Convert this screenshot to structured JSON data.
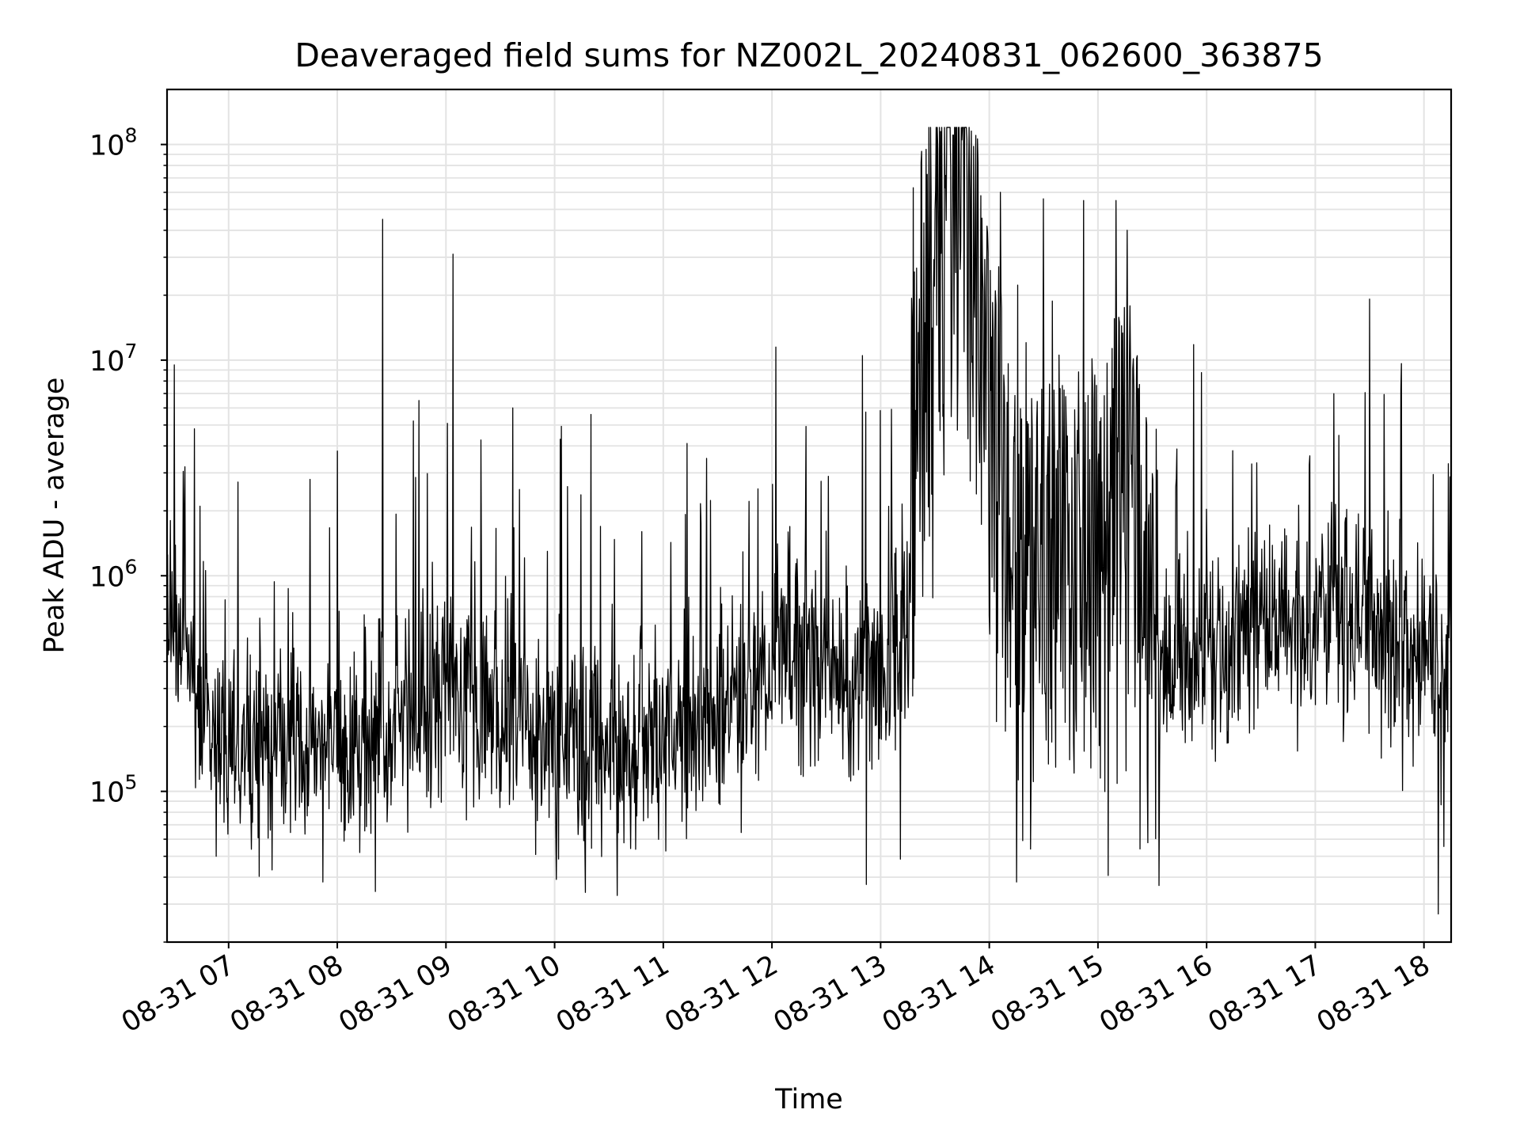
{
  "chart_data": {
    "type": "line",
    "title": "Deaveraged field sums for NZ002L_20240831_062600_363875",
    "xlabel": "Time",
    "ylabel": "Peak ADU - average",
    "yscale": "log",
    "ylim": [
      20000,
      180000000
    ],
    "xlim": [
      "2024-08-31 06:26",
      "2024-08-31 18:15"
    ],
    "grid": "on (major and minor)",
    "line_color": "#000000",
    "x_ticks": [
      "2024-08-31 07:00",
      "2024-08-31 08:00",
      "2024-08-31 09:00",
      "2024-08-31 10:00",
      "2024-08-31 11:00",
      "2024-08-31 12:00",
      "2024-08-31 13:00",
      "2024-08-31 14:00",
      "2024-08-31 15:00",
      "2024-08-31 16:00",
      "2024-08-31 17:00",
      "2024-08-31 18:00"
    ],
    "x_tick_labels": [
      "08-31 07",
      "08-31 08",
      "08-31 09",
      "08-31 10",
      "08-31 11",
      "08-31 12",
      "08-31 13",
      "08-31 14",
      "08-31 15",
      "08-31 16",
      "08-31 17",
      "08-31 18"
    ],
    "y_ticks": [
      {
        "value": 100000,
        "base": "10",
        "exp": "5"
      },
      {
        "value": 1000000,
        "base": "10",
        "exp": "6"
      },
      {
        "value": 10000000,
        "base": "10",
        "exp": "7"
      },
      {
        "value": 100000000,
        "base": "10",
        "exp": "8"
      }
    ],
    "envelope": {
      "x": [
        "2024-08-31 06:26",
        "2024-08-31 06:35",
        "2024-08-31 06:45",
        "2024-08-31 06:55",
        "2024-08-31 07:30",
        "2024-08-31 08:00",
        "2024-08-31 08:30",
        "2024-08-31 09:00",
        "2024-08-31 09:30",
        "2024-08-31 10:00",
        "2024-08-31 10:30",
        "2024-08-31 11:00",
        "2024-08-31 11:30",
        "2024-08-31 11:55",
        "2024-08-31 12:05",
        "2024-08-31 12:30",
        "2024-08-31 13:00",
        "2024-08-31 13:15",
        "2024-08-31 13:20",
        "2024-08-31 13:30",
        "2024-08-31 13:45",
        "2024-08-31 14:00",
        "2024-08-31 14:15",
        "2024-08-31 14:30",
        "2024-08-31 14:45",
        "2024-08-31 15:00",
        "2024-08-31 15:15",
        "2024-08-31 15:30",
        "2024-08-31 15:45",
        "2024-08-31 16:00",
        "2024-08-31 16:30",
        "2024-08-31 17:00",
        "2024-08-31 17:30",
        "2024-08-31 18:00",
        "2024-08-31 18:15"
      ],
      "median": [
        480000,
        450000,
        300000,
        160000,
        150000,
        160000,
        180000,
        300000,
        250000,
        170000,
        150000,
        170000,
        240000,
        330000,
        500000,
        380000,
        350000,
        400000,
        5000000,
        30000000,
        40000000,
        3000000,
        800000,
        600000,
        700000,
        800000,
        2000000,
        300000,
        350000,
        450000,
        550000,
        650000,
        600000,
        500000,
        250000
      ]
    },
    "spikes": {
      "x": [
        "2024-08-31 06:30",
        "2024-08-31 06:36",
        "2024-08-31 06:41",
        "2024-08-31 07:45",
        "2024-08-31 08:25",
        "2024-08-31 08:45",
        "2024-08-31 09:04",
        "2024-08-31 09:37",
        "2024-08-31 10:20",
        "2024-08-31 11:24",
        "2024-08-31 12:02",
        "2024-08-31 12:50",
        "2024-08-31 13:18",
        "2024-08-31 13:25",
        "2024-08-31 13:33",
        "2024-08-31 13:45",
        "2024-08-31 14:06",
        "2024-08-31 14:30",
        "2024-08-31 14:52",
        "2024-08-31 15:10",
        "2024-08-31 15:16",
        "2024-08-31 16:25",
        "2024-08-31 16:57",
        "2024-08-31 17:40"
      ],
      "values": [
        9500000,
        3200000,
        4800000,
        2800000,
        45000000,
        6500000,
        31000000,
        6000000,
        5600000,
        3500000,
        11500000,
        10500000,
        63000000,
        95000000,
        115000000,
        105000000,
        60000000,
        56000000,
        55000000,
        55000000,
        40000000,
        3300000,
        3600000,
        2000000
      ]
    },
    "dips": {
      "x": [
        "2024-08-31 06:53",
        "2024-08-31 07:52",
        "2024-08-31 10:17",
        "2024-08-31 12:52",
        "2024-08-31 14:15",
        "2024-08-31 18:08"
      ],
      "values": [
        50000,
        38000,
        34000,
        37000,
        38000,
        27000
      ]
    }
  }
}
